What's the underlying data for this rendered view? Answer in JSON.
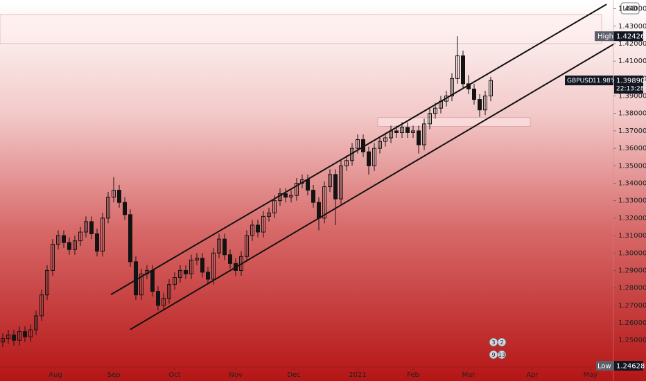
{
  "chart_data": {
    "type": "candlestick",
    "currency": "USD",
    "candle_color": "#131313",
    "x": [
      -19,
      -17,
      -15,
      -13,
      -11,
      -9,
      -7,
      -5,
      -3,
      -1,
      1,
      3,
      5,
      7,
      9,
      11,
      13,
      15,
      17,
      19,
      21,
      23,
      25,
      27,
      29,
      31,
      33,
      35,
      37,
      39,
      41,
      43,
      45,
      47,
      49,
      51,
      53,
      55,
      57,
      59,
      61,
      63,
      65,
      67,
      69,
      71,
      73,
      75,
      77,
      79,
      81,
      83,
      85,
      87,
      89,
      91,
      93,
      95,
      97,
      99,
      101,
      103,
      105,
      107,
      109,
      111,
      113,
      115,
      117,
      119,
      121,
      123,
      125,
      127,
      129,
      131,
      133,
      135,
      137,
      139,
      141,
      143,
      145,
      147,
      149,
      151,
      153,
      155,
      157
    ],
    "open": [
      1.249,
      1.251,
      1.253,
      1.25,
      1.255,
      1.252,
      1.256,
      1.264,
      1.276,
      1.29,
      1.305,
      1.31,
      1.306,
      1.302,
      1.307,
      1.312,
      1.318,
      1.311,
      1.301,
      1.32,
      1.332,
      1.336,
      1.329,
      1.322,
      1.295,
      1.276,
      1.288,
      1.29,
      1.278,
      1.27,
      1.274,
      1.282,
      1.286,
      1.29,
      1.288,
      1.296,
      1.297,
      1.289,
      1.285,
      1.3,
      1.308,
      1.299,
      1.294,
      1.29,
      1.298,
      1.31,
      1.316,
      1.312,
      1.321,
      1.323,
      1.33,
      1.334,
      1.332,
      1.333,
      1.34,
      1.342,
      1.336,
      1.329,
      1.32,
      1.338,
      1.345,
      1.331,
      1.35,
      1.353,
      1.36,
      1.365,
      1.358,
      1.35,
      1.36,
      1.364,
      1.366,
      1.37,
      1.369,
      1.372,
      1.369,
      1.37,
      1.362,
      1.374,
      1.38,
      1.383,
      1.387,
      1.39,
      1.4,
      1.413,
      1.397,
      1.394,
      1.388,
      1.382,
      1.39
    ],
    "high": [
      1.254,
      1.256,
      1.256,
      1.258,
      1.258,
      1.259,
      1.267,
      1.279,
      1.293,
      1.308,
      1.313,
      1.313,
      1.309,
      1.31,
      1.315,
      1.321,
      1.321,
      1.314,
      1.323,
      1.335,
      1.3435,
      1.339,
      1.332,
      1.325,
      1.298,
      1.291,
      1.293,
      1.293,
      1.281,
      1.277,
      1.285,
      1.289,
      1.293,
      1.293,
      1.299,
      1.3,
      1.3,
      1.292,
      1.303,
      1.311,
      1.311,
      1.302,
      1.297,
      1.301,
      1.313,
      1.319,
      1.319,
      1.324,
      1.326,
      1.333,
      1.337,
      1.337,
      1.336,
      1.343,
      1.345,
      1.345,
      1.339,
      1.332,
      1.341,
      1.348,
      1.348,
      1.353,
      1.356,
      1.363,
      1.368,
      1.368,
      1.361,
      1.363,
      1.367,
      1.369,
      1.373,
      1.373,
      1.375,
      1.375,
      1.373,
      1.373,
      1.377,
      1.383,
      1.386,
      1.39,
      1.393,
      1.403,
      1.42426,
      1.416,
      1.402,
      1.397,
      1.391,
      1.393,
      1.401
    ],
    "low": [
      1.246,
      1.248,
      1.247,
      1.247,
      1.249,
      1.249,
      1.253,
      1.261,
      1.273,
      1.287,
      1.302,
      1.303,
      1.299,
      1.299,
      1.304,
      1.309,
      1.308,
      1.298,
      1.298,
      1.317,
      1.329,
      1.326,
      1.319,
      1.292,
      1.273,
      1.273,
      1.285,
      1.275,
      1.267,
      1.267,
      1.271,
      1.279,
      1.283,
      1.285,
      1.285,
      1.293,
      1.286,
      1.282,
      1.282,
      1.297,
      1.296,
      1.291,
      1.287,
      1.287,
      1.295,
      1.307,
      1.309,
      1.309,
      1.318,
      1.32,
      1.327,
      1.329,
      1.329,
      1.33,
      1.337,
      1.333,
      1.326,
      1.313,
      1.317,
      1.335,
      1.316,
      1.328,
      1.347,
      1.35,
      1.357,
      1.355,
      1.345,
      1.347,
      1.357,
      1.361,
      1.363,
      1.366,
      1.366,
      1.366,
      1.366,
      1.357,
      1.359,
      1.371,
      1.377,
      1.38,
      1.384,
      1.387,
      1.397,
      1.394,
      1.391,
      1.385,
      1.378,
      1.379,
      1.387
    ],
    "close": [
      1.251,
      1.253,
      1.25,
      1.255,
      1.252,
      1.256,
      1.264,
      1.276,
      1.29,
      1.305,
      1.31,
      1.306,
      1.302,
      1.307,
      1.312,
      1.318,
      1.311,
      1.301,
      1.32,
      1.332,
      1.336,
      1.329,
      1.322,
      1.295,
      1.276,
      1.288,
      1.29,
      1.278,
      1.27,
      1.274,
      1.282,
      1.286,
      1.29,
      1.288,
      1.296,
      1.297,
      1.289,
      1.285,
      1.3,
      1.308,
      1.299,
      1.294,
      1.29,
      1.298,
      1.31,
      1.316,
      1.312,
      1.321,
      1.323,
      1.33,
      1.334,
      1.332,
      1.333,
      1.34,
      1.342,
      1.336,
      1.329,
      1.32,
      1.338,
      1.345,
      1.331,
      1.35,
      1.353,
      1.36,
      1.365,
      1.358,
      1.35,
      1.36,
      1.364,
      1.366,
      1.37,
      1.369,
      1.372,
      1.369,
      1.37,
      1.362,
      1.374,
      1.38,
      1.383,
      1.387,
      1.39,
      1.4,
      1.413,
      1.397,
      1.394,
      1.388,
      1.382,
      1.39,
      1.3989
    ],
    "xlim": [
      -20,
      201.25
    ],
    "ylim": [
      1.2346,
      1.445
    ],
    "xticks": [
      {
        "value": 0,
        "label": "Aug"
      },
      {
        "value": 21,
        "label": "Sep"
      },
      {
        "value": 43,
        "label": "Oct"
      },
      {
        "value": 65,
        "label": "Nov"
      },
      {
        "value": 86,
        "label": "Dec"
      },
      {
        "value": 109,
        "label": "2021"
      },
      {
        "value": 129,
        "label": "Feb"
      },
      {
        "value": 149,
        "label": "Mar"
      },
      {
        "value": 172,
        "label": "Apr"
      },
      {
        "value": 193,
        "label": "May"
      }
    ],
    "yticks": [
      {
        "value": 1.25,
        "label": "1.25000"
      },
      {
        "value": 1.26,
        "label": "1.26000"
      },
      {
        "value": 1.27,
        "label": "1.27000"
      },
      {
        "value": 1.28,
        "label": "1.28000"
      },
      {
        "value": 1.29,
        "label": "1.29000"
      },
      {
        "value": 1.3,
        "label": "1.30000"
      },
      {
        "value": 1.31,
        "label": "1.31000"
      },
      {
        "value": 1.32,
        "label": "1.32000"
      },
      {
        "value": 1.33,
        "label": "1.33000"
      },
      {
        "value": 1.34,
        "label": "1.34000"
      },
      {
        "value": 1.35,
        "label": "1.35000"
      },
      {
        "value": 1.36,
        "label": "1.36000"
      },
      {
        "value": 1.37,
        "label": "1.37000"
      },
      {
        "value": 1.38,
        "label": "1.38000"
      },
      {
        "value": 1.39,
        "label": "1.39000"
      },
      {
        "value": 1.4,
        "label": "1.40000"
      },
      {
        "value": 1.41,
        "label": "1.41000"
      },
      {
        "value": 1.42,
        "label": "1.42000"
      },
      {
        "value": 1.43,
        "label": "1.43000"
      },
      {
        "value": 1.44,
        "label": "1.44000"
      }
    ],
    "trendlines": [
      {
        "x": [
          20,
          198.75
        ],
        "y": [
          1.2762,
          1.4425
        ]
      },
      {
        "x": [
          27,
          201.25
        ],
        "y": [
          1.2562,
          1.4196
        ]
      }
    ],
    "zones": [
      {
        "x": [
          -20,
          197
        ],
        "y": [
          1.42,
          1.4367
        ]
      },
      {
        "x": [
          116.25,
          171.25
        ],
        "y": [
          1.3726,
          1.3776
        ]
      }
    ],
    "high_marker": {
      "label": "High",
      "value": 1.42426
    },
    "low_marker": {
      "label": "Low",
      "value": 1.24628
    },
    "last_price": {
      "symbol": "GBPUSD",
      "change": "11.98%",
      "value": 1.3989,
      "value_label": "1.39890",
      "countdown": "22:13:28"
    },
    "events": [
      "3",
      "2",
      "9",
      "13"
    ]
  }
}
